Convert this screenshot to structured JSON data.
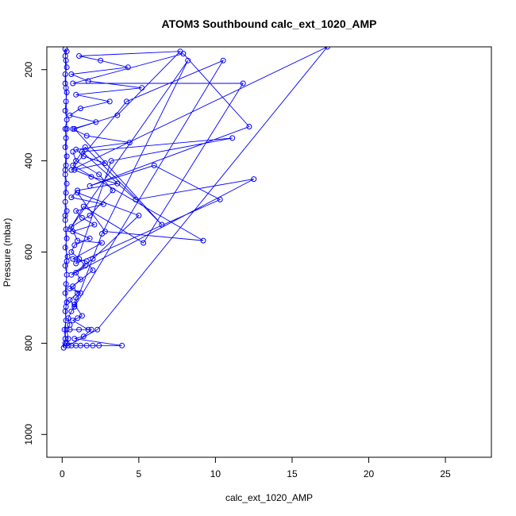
{
  "chart_data": {
    "type": "line",
    "title": "ATOM3 Southbound calc_ext_1020_AMP",
    "xlabel": "calc_ext_1020_AMP",
    "ylabel": "Pressure (mbar)",
    "xlim": [
      -1,
      28
    ],
    "ylim": [
      1050,
      150
    ],
    "y_reversed": true,
    "x_ticks": [
      0,
      5,
      10,
      15,
      20,
      25
    ],
    "y_ticks": [
      200,
      400,
      600,
      800,
      1000
    ],
    "grid": false,
    "legend": "none",
    "marker": "open-circle",
    "series_color": "#0000ff",
    "series": [
      {
        "x": [
          0.2,
          0.3,
          0.4,
          0.3,
          0.5,
          0.4,
          0.6,
          0.8,
          0.5,
          1.0,
          0.7,
          1.2,
          0.9,
          1.5,
          1.1,
          0.6,
          0.8,
          1.8,
          0.7,
          2.1,
          1.3,
          0.9,
          2.7,
          0.6,
          1.0,
          3.6,
          1.9,
          0.8,
          2.8,
          1.4,
          0.9,
          4.4,
          1.6,
          0.7,
          2.2,
          0.5,
          1.2,
          3.1,
          0.9,
          5.2,
          1.7,
          0.6,
          4.3,
          2.5,
          1.1,
          7.7,
          3.6,
          0.8,
          6.5,
          1.5,
          0.7,
          9.2,
          2.8,
          1.0,
          5.0,
          2.0,
          0.6,
          12.5,
          4.8,
          1.3,
          11.1,
          3.2,
          0.9,
          10.3,
          6.0,
          1.8,
          12.2,
          7.9,
          0.7,
          11.8,
          5.3,
          1.4,
          0.5,
          8.2,
          2.6,
          0.8,
          10.5,
          4.2,
          0.6,
          17.3,
          2.3,
          0.4
        ],
        "y": [
          805,
          800,
          790,
          770,
          760,
          745,
          730,
          720,
          705,
          690,
          675,
          660,
          645,
          630,
          615,
          600,
          585,
          570,
          555,
          540,
          525,
          510,
          495,
          480,
          465,
          450,
          435,
          420,
          405,
          390,
          375,
          360,
          345,
          330,
          315,
          300,
          285,
          270,
          255,
          240,
          225,
          210,
          195,
          180,
          170,
          160,
          300,
          330,
          540,
          370,
          410,
          575,
          555,
          470,
          520,
          615,
          650,
          440,
          485,
          380,
          350,
          400,
          625,
          485,
          410,
          455,
          325,
          165,
          230,
          230,
          580,
          500,
          550,
          180,
          560,
          720,
          180,
          270,
          420,
          150,
          770,
          805
        ]
      },
      {
        "x": [
          0.1,
          0.2,
          0.15,
          0.25,
          0.2,
          0.3,
          0.2,
          0.25,
          0.3,
          0.2,
          0.35,
          0.2,
          0.3,
          0.25,
          0.2,
          0.3,
          0.2,
          0.25,
          0.3,
          0.2,
          0.25,
          0.3,
          0.2,
          0.25,
          0.2,
          0.3,
          0.2,
          0.25,
          0.3,
          0.2,
          0.2,
          0.3,
          0.25,
          0.2,
          0.3,
          0.2,
          0.25,
          0.3,
          0.2,
          0.2,
          0.3,
          0.25,
          0.2
        ],
        "y": [
          810,
          790,
          770,
          750,
          730,
          710,
          690,
          670,
          650,
          630,
          610,
          590,
          570,
          550,
          530,
          510,
          490,
          470,
          450,
          430,
          410,
          390,
          370,
          350,
          330,
          310,
          290,
          270,
          250,
          230,
          210,
          195,
          180,
          170,
          160,
          155,
          240,
          330,
          420,
          520,
          620,
          720,
          800
        ]
      },
      {
        "x": [
          0.6,
          0.9,
          1.2,
          1.6,
          2.0,
          2.4,
          3.9,
          0.8,
          1.4,
          1.9,
          0.5,
          1.1,
          1.7,
          0.7,
          1.0,
          1.3,
          0.8,
          0.9,
          1.2,
          0.5,
          2.0,
          1.6,
          0.7,
          2.6,
          1.0,
          0.6,
          1.8,
          3.3,
          2.4,
          0.9,
          0.7
        ],
        "y": [
          805,
          805,
          805,
          805,
          805,
          805,
          805,
          790,
          785,
          770,
          770,
          770,
          770,
          750,
          745,
          740,
          715,
          700,
          690,
          680,
          640,
          620,
          615,
          580,
          575,
          545,
          520,
          465,
          430,
          400,
          380
        ]
      }
    ]
  }
}
